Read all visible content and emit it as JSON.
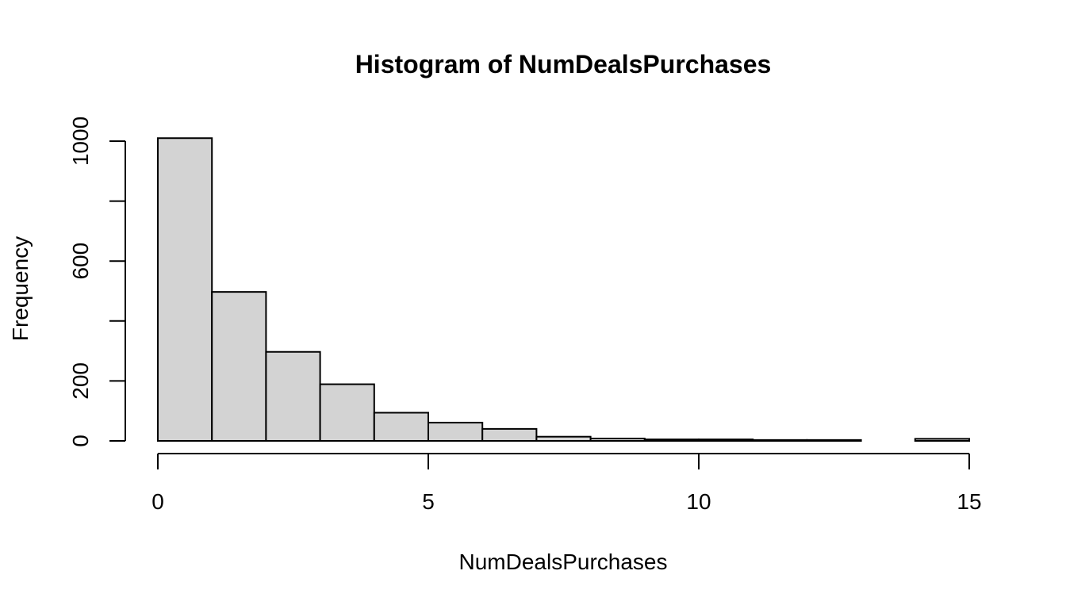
{
  "chart_data": {
    "type": "bar",
    "subtype": "histogram",
    "title": "Histogram of NumDealsPurchases",
    "xlabel": "NumDealsPurchases",
    "ylabel": "Frequency",
    "bins": [
      {
        "from": 0,
        "to": 1,
        "count": 1010
      },
      {
        "from": 1,
        "to": 2,
        "count": 497
      },
      {
        "from": 2,
        "to": 3,
        "count": 297
      },
      {
        "from": 3,
        "to": 4,
        "count": 189
      },
      {
        "from": 4,
        "to": 5,
        "count": 94
      },
      {
        "from": 5,
        "to": 6,
        "count": 61
      },
      {
        "from": 6,
        "to": 7,
        "count": 40
      },
      {
        "from": 7,
        "to": 8,
        "count": 14
      },
      {
        "from": 8,
        "to": 9,
        "count": 8
      },
      {
        "from": 9,
        "to": 10,
        "count": 5
      },
      {
        "from": 10,
        "to": 11,
        "count": 5
      },
      {
        "from": 11,
        "to": 12,
        "count": 3
      },
      {
        "from": 12,
        "to": 13,
        "count": 3
      },
      {
        "from": 13,
        "to": 14,
        "count": 0
      },
      {
        "from": 14,
        "to": 15,
        "count": 7
      }
    ],
    "xlim": [
      0,
      15
    ],
    "ylim": [
      0,
      1000
    ],
    "x_ticks": [
      0,
      5,
      10,
      15
    ],
    "x_tick_labels": [
      "0",
      "5",
      "10",
      "15"
    ],
    "y_ticks": [
      0,
      200,
      400,
      600,
      800,
      1000
    ],
    "y_tick_labels": [
      "0",
      "200",
      "",
      "600",
      "",
      "1000"
    ],
    "bar_fill": "#d3d3d3",
    "grid": false,
    "legend": "none"
  }
}
